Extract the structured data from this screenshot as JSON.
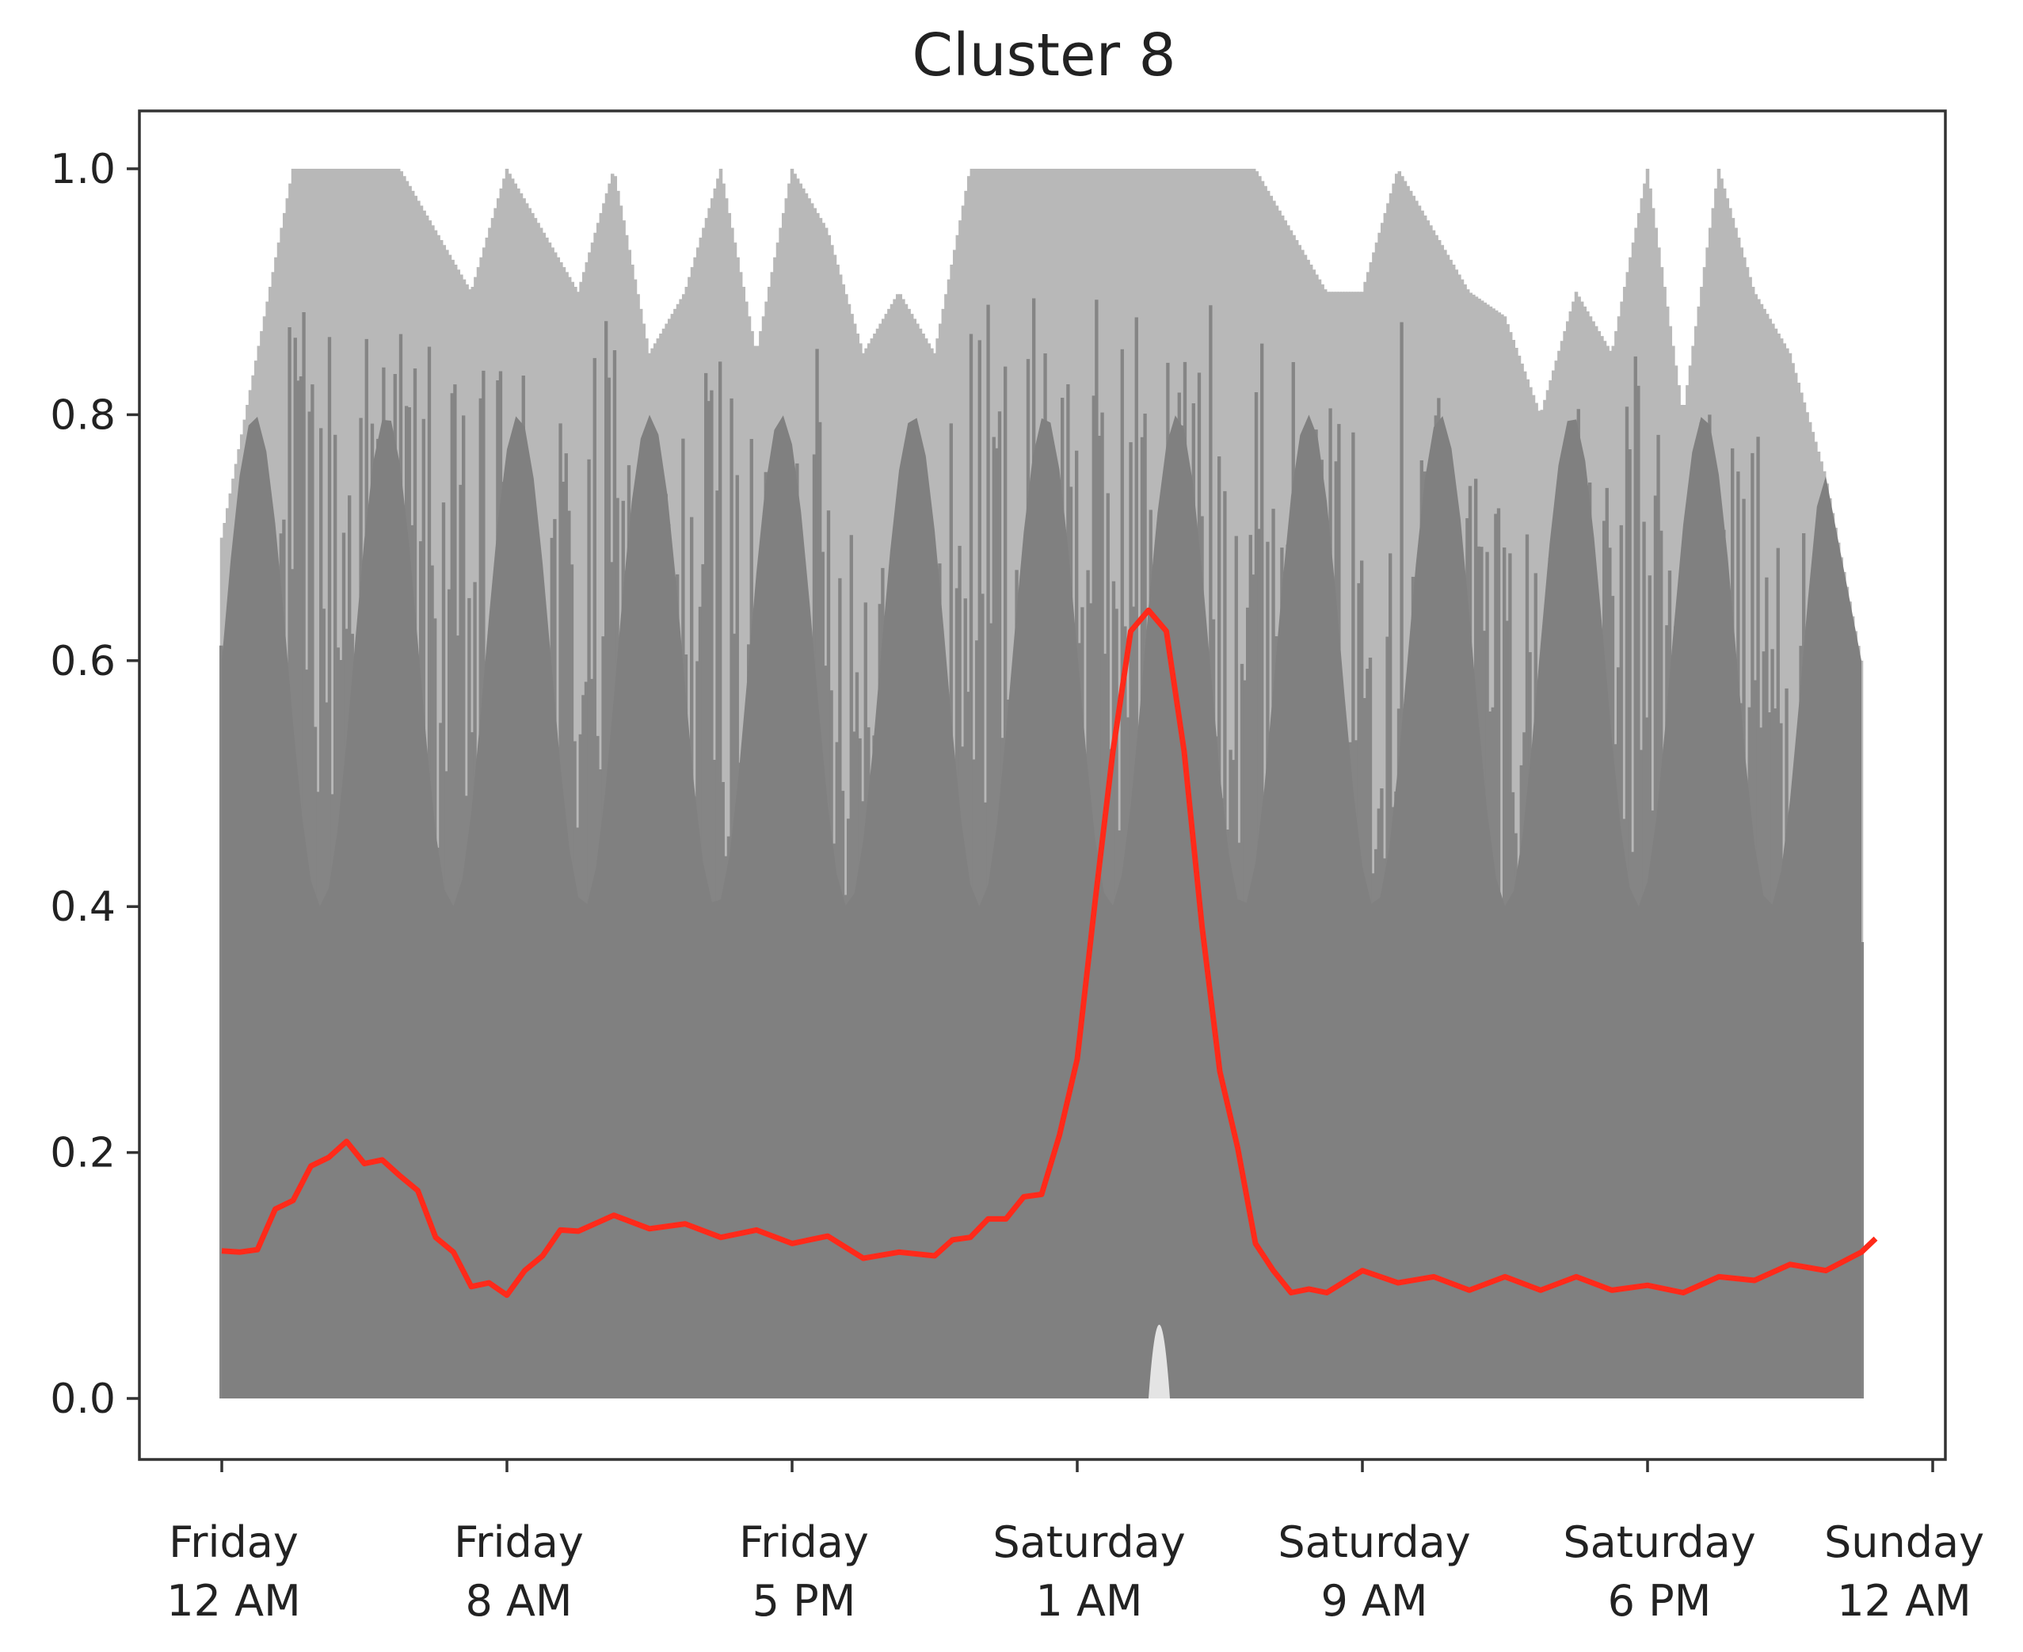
{
  "chart_data": {
    "type": "line",
    "title": "Cluster 8",
    "xlabel": "",
    "ylabel": "",
    "ylim": [
      0.0,
      1.0
    ],
    "xlim_hours": [
      0,
      48
    ],
    "y_ticks": [
      "0.0",
      "0.2",
      "0.4",
      "0.6",
      "0.8",
      "1.0"
    ],
    "y_tick_values": [
      0.0,
      0.2,
      0.4,
      0.6,
      0.8,
      1.0
    ],
    "x_ticks": [
      {
        "line1": "Friday",
        "line2": "12 AM",
        "hour": 0
      },
      {
        "line1": "Friday",
        "line2": "8 AM",
        "hour": 8
      },
      {
        "line1": "Friday",
        "line2": "5 PM",
        "hour": 16
      },
      {
        "line1": "Saturday",
        "line2": "1 AM",
        "hour": 24
      },
      {
        "line1": "Saturday",
        "line2": "9 AM",
        "hour": 32
      },
      {
        "line1": "Saturday",
        "line2": "6 PM",
        "hour": 40
      },
      {
        "line1": "Sunday",
        "line2": "12 AM",
        "hour": 48
      }
    ],
    "grid": false,
    "legend": "none",
    "colors": {
      "individual_traces": "#808080",
      "mean_line": "#ff2a1a",
      "frame": "#333333"
    },
    "series": [
      {
        "role": "individual-traces-envelope",
        "upper_hour": [
          0,
          1,
          2,
          3,
          4,
          5,
          6,
          7,
          8,
          9,
          10,
          11,
          12,
          13,
          14,
          15,
          16,
          17,
          18,
          19,
          20,
          21,
          22,
          23,
          24,
          25,
          26,
          27,
          28,
          29,
          30,
          31,
          32,
          33,
          34,
          35,
          36,
          37,
          38,
          39,
          40,
          41,
          42,
          43,
          44,
          45,
          46
        ],
        "upper": [
          0.7,
          0.85,
          1.0,
          1.0,
          1.0,
          1.0,
          0.95,
          0.9,
          1.0,
          0.95,
          0.9,
          1.0,
          0.85,
          0.9,
          1.0,
          0.85,
          1.0,
          0.95,
          0.85,
          0.9,
          0.85,
          1.0,
          1.0,
          1.0,
          1.0,
          1.0,
          1.0,
          1.0,
          1.0,
          1.0,
          0.95,
          0.9,
          0.9,
          1.0,
          0.95,
          0.9,
          0.88,
          0.8,
          0.9,
          0.85,
          1.0,
          0.8,
          1.0,
          0.9,
          0.85,
          0.75,
          0.6
        ],
        "lower_gap_hour": [
          26,
          26.3,
          26.6
        ],
        "lower_gap": [
          0.0,
          0.12,
          0.0
        ]
      },
      {
        "role": "cluster-mean",
        "x_hours": [
          0,
          0.5,
          1,
          1.5,
          2,
          2.5,
          3,
          3.5,
          4,
          4.5,
          5,
          5.5,
          6,
          6.5,
          7,
          7.5,
          8,
          8.5,
          9,
          9.5,
          10,
          11,
          12,
          13,
          14,
          15,
          16,
          17,
          18,
          19,
          20,
          20.5,
          21,
          21.5,
          22,
          22.5,
          23,
          23.5,
          24,
          24.5,
          25,
          25.5,
          26,
          26.5,
          27,
          27.5,
          28,
          28.5,
          29,
          29.5,
          30,
          30.5,
          31,
          32,
          33,
          34,
          35,
          36,
          37,
          38,
          39,
          40,
          41,
          42,
          43,
          44,
          45,
          46,
          46.4
        ],
        "y": [
          0.12,
          0.115,
          0.125,
          0.15,
          0.165,
          0.185,
          0.2,
          0.205,
          0.195,
          0.19,
          0.185,
          0.165,
          0.135,
          0.115,
          0.095,
          0.09,
          0.088,
          0.1,
          0.12,
          0.133,
          0.14,
          0.145,
          0.142,
          0.138,
          0.135,
          0.133,
          0.13,
          0.128,
          0.118,
          0.115,
          0.12,
          0.125,
          0.135,
          0.142,
          0.15,
          0.16,
          0.17,
          0.21,
          0.28,
          0.4,
          0.53,
          0.62,
          0.645,
          0.62,
          0.53,
          0.38,
          0.27,
          0.2,
          0.13,
          0.1,
          0.09,
          0.085,
          0.09,
          0.1,
          0.098,
          0.095,
          0.092,
          0.095,
          0.092,
          0.095,
          0.092,
          0.088,
          0.09,
          0.095,
          0.1,
          0.105,
          0.108,
          0.115,
          0.13
        ]
      }
    ]
  }
}
